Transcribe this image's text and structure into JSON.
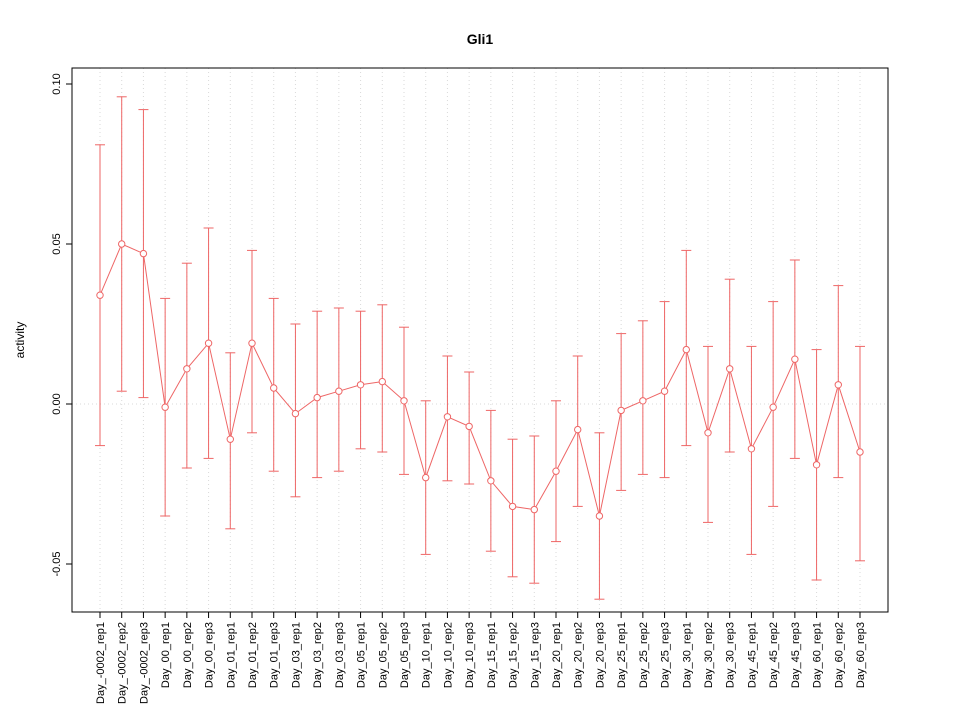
{
  "chart_data": {
    "type": "line",
    "title": "Gli1",
    "xlabel": "",
    "ylabel": "activity",
    "legend": "none",
    "grid": "dotted-vertical-at-each-category-and-horizontal-at-zero",
    "series_color": "#ee6666",
    "grid_color": "#d9d9d9",
    "box_color": "#000000",
    "ylim": [
      -0.065,
      0.105
    ],
    "yticks": [
      -0.05,
      0.0,
      0.05,
      0.1
    ],
    "ytick_labels": [
      "-0.05",
      "0.00",
      "0.05",
      "0.10"
    ],
    "zero_line": 0,
    "categories": [
      "Day_-0002_rep1",
      "Day_-0002_rep2",
      "Day_-0002_rep3",
      "Day_00_rep1",
      "Day_00_rep2",
      "Day_00_rep3",
      "Day_01_rep1",
      "Day_01_rep2",
      "Day_01_rep3",
      "Day_03_rep1",
      "Day_03_rep2",
      "Day_03_rep3",
      "Day_05_rep1",
      "Day_05_rep2",
      "Day_05_rep3",
      "Day_10_rep1",
      "Day_10_rep2",
      "Day_10_rep3",
      "Day_15_rep1",
      "Day_15_rep2",
      "Day_15_rep3",
      "Day_20_rep1",
      "Day_20_rep2",
      "Day_20_rep3",
      "Day_25_rep1",
      "Day_25_rep2",
      "Day_25_rep3",
      "Day_30_rep1",
      "Day_30_rep2",
      "Day_30_rep3",
      "Day_45_rep1",
      "Day_45_rep2",
      "Day_45_rep3",
      "Day_60_rep1",
      "Day_60_rep2",
      "Day_60_rep3"
    ],
    "series": [
      {
        "name": "activity",
        "values": [
          0.034,
          0.05,
          0.047,
          -0.001,
          0.011,
          0.019,
          -0.011,
          0.019,
          0.005,
          -0.003,
          0.002,
          0.004,
          0.006,
          0.007,
          0.001,
          -0.023,
          -0.004,
          -0.007,
          -0.024,
          -0.032,
          -0.033,
          -0.021,
          -0.008,
          -0.035,
          -0.002,
          0.001,
          0.004,
          0.017,
          -0.009,
          0.011,
          -0.014,
          -0.001,
          0.014,
          -0.019,
          0.006,
          -0.015
        ],
        "lower": [
          -0.013,
          0.004,
          0.002,
          -0.035,
          -0.02,
          -0.017,
          -0.039,
          -0.009,
          -0.021,
          -0.029,
          -0.023,
          -0.021,
          -0.014,
          -0.015,
          -0.022,
          -0.047,
          -0.024,
          -0.025,
          -0.046,
          -0.054,
          -0.056,
          -0.043,
          -0.032,
          -0.061,
          -0.027,
          -0.022,
          -0.023,
          -0.013,
          -0.037,
          -0.015,
          -0.047,
          -0.032,
          -0.017,
          -0.055,
          -0.023,
          -0.049
        ],
        "upper": [
          0.081,
          0.096,
          0.092,
          0.033,
          0.044,
          0.055,
          0.016,
          0.048,
          0.033,
          0.025,
          0.029,
          0.03,
          0.029,
          0.031,
          0.024,
          0.001,
          0.015,
          0.01,
          -0.002,
          -0.011,
          -0.01,
          0.001,
          0.015,
          -0.009,
          0.022,
          0.026,
          0.032,
          0.048,
          0.018,
          0.039,
          0.018,
          0.032,
          0.045,
          0.017,
          0.037,
          0.018
        ]
      }
    ]
  }
}
